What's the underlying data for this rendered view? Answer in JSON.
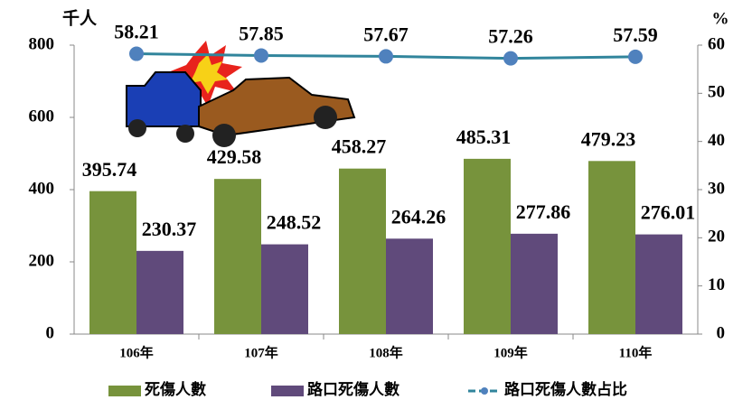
{
  "chart_data": {
    "type": "bar",
    "y_label": "千人",
    "y2_label": "%",
    "categories": [
      "106年",
      "107年",
      "108年",
      "109年",
      "110年"
    ],
    "series": [
      {
        "name": "死傷人數",
        "color": "#77933c",
        "values": [
          395.74,
          429.58,
          458.27,
          485.31,
          479.23
        ]
      },
      {
        "name": "路口死傷人數",
        "color": "#604a7b",
        "values": [
          230.37,
          248.52,
          264.26,
          277.86,
          276.01
        ]
      },
      {
        "name": "路口死傷人數占比",
        "type": "line",
        "axis": "y2",
        "color": "#31859c",
        "marker_color": "#4f81bd",
        "values": [
          58.21,
          57.85,
          57.67,
          57.26,
          57.59
        ]
      }
    ],
    "ylim": [
      0,
      800
    ],
    "yticks": [
      0,
      200,
      400,
      600,
      800
    ],
    "y2lim": [
      0,
      60
    ],
    "y2ticks": [
      0,
      10,
      20,
      30,
      40,
      50,
      60
    ]
  }
}
